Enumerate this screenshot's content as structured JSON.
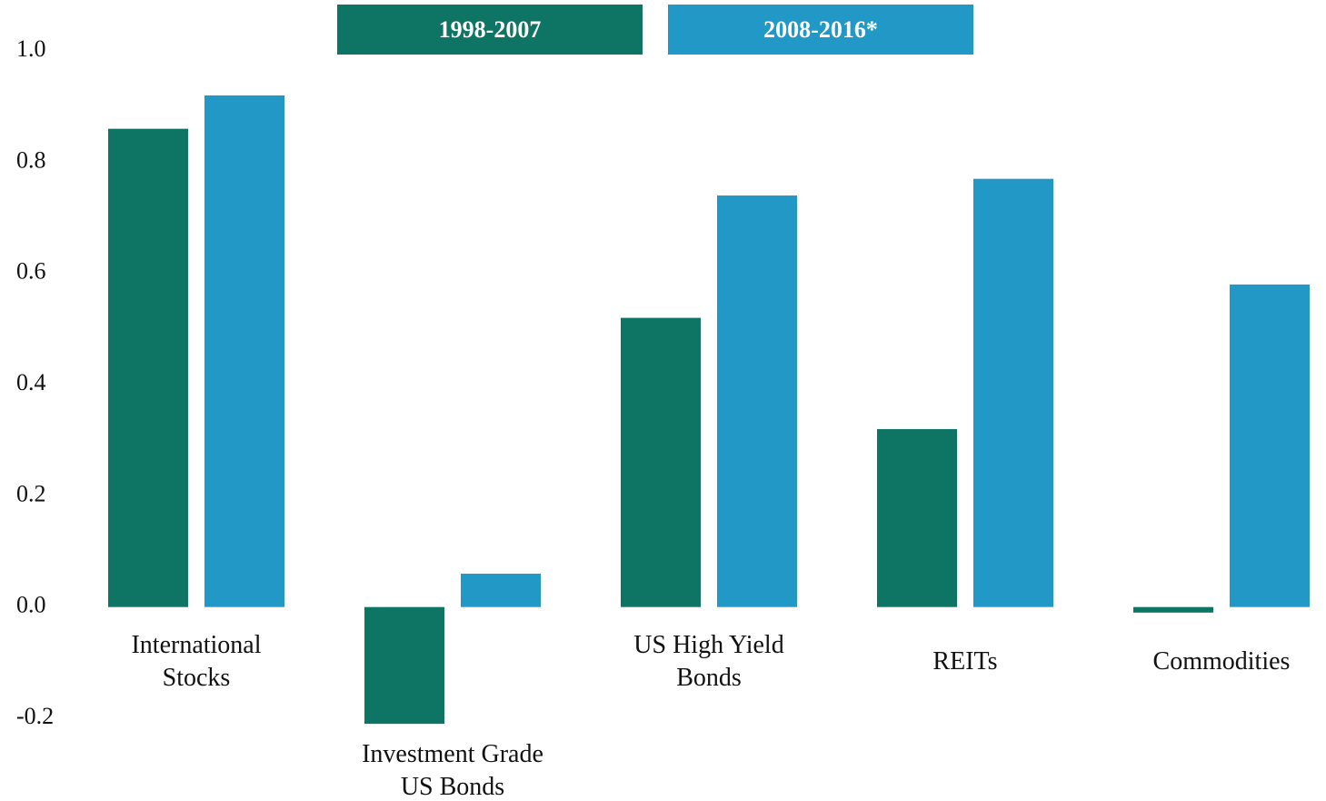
{
  "chart_data": {
    "type": "bar",
    "categories": [
      "International Stocks",
      "Investment Grade US Bonds",
      "US High Yield Bonds",
      "REITs",
      "Commodities"
    ],
    "series": [
      {
        "name": "1998-2007",
        "color": "#0e7463",
        "values": [
          0.86,
          -0.21,
          0.52,
          0.32,
          -0.01
        ]
      },
      {
        "name": "2008-2016*",
        "color": "#2198c6",
        "values": [
          0.92,
          0.06,
          0.74,
          0.77,
          0.58
        ]
      }
    ],
    "ylim": [
      -0.2,
      1.0
    ],
    "yticks": [
      {
        "value": -0.2,
        "label": "-0.2"
      },
      {
        "value": 0,
        "label": "0.0"
      },
      0.2,
      0.4,
      0.6,
      0.8,
      {
        "value": 1.0,
        "label": "1.0"
      }
    ],
    "grid": false
  }
}
